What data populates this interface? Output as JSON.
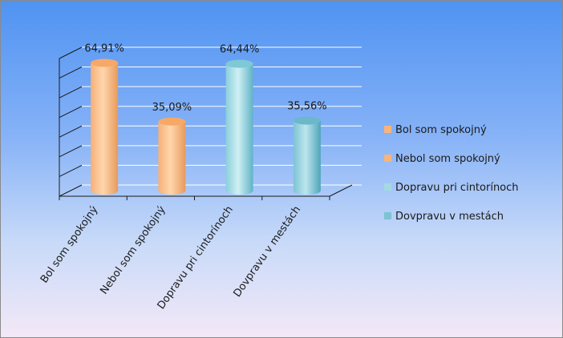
{
  "chart_data": {
    "type": "bar",
    "variant": "3d-cylinder",
    "categories": [
      "Bol som spokojný",
      "Nebol som spokojný",
      "Dopravu pri cintorínoch",
      "Dovpravu v mestách"
    ],
    "values": [
      64.91,
      35.09,
      64.44,
      35.56
    ],
    "value_labels": [
      "64,91%",
      "35,09%",
      "64,44%",
      "35,56%"
    ],
    "colors": [
      "#f8b47b",
      "#f8b47b",
      "#8ed2dc",
      "#7cc3d4"
    ],
    "ylim": [
      0,
      70
    ],
    "grid": true,
    "legend_position": "right",
    "title": "",
    "xlabel": "",
    "ylabel": ""
  },
  "legend": [
    {
      "label": "Bol som spokojný",
      "color": "#f8b47b"
    },
    {
      "label": "Nebol som spokojný",
      "color": "#f8b47b"
    },
    {
      "label": "Dopravu pri cintorínoch",
      "color": "#9fd6e0"
    },
    {
      "label": "Dovpravu v mestách",
      "color": "#7cc3d4"
    }
  ]
}
